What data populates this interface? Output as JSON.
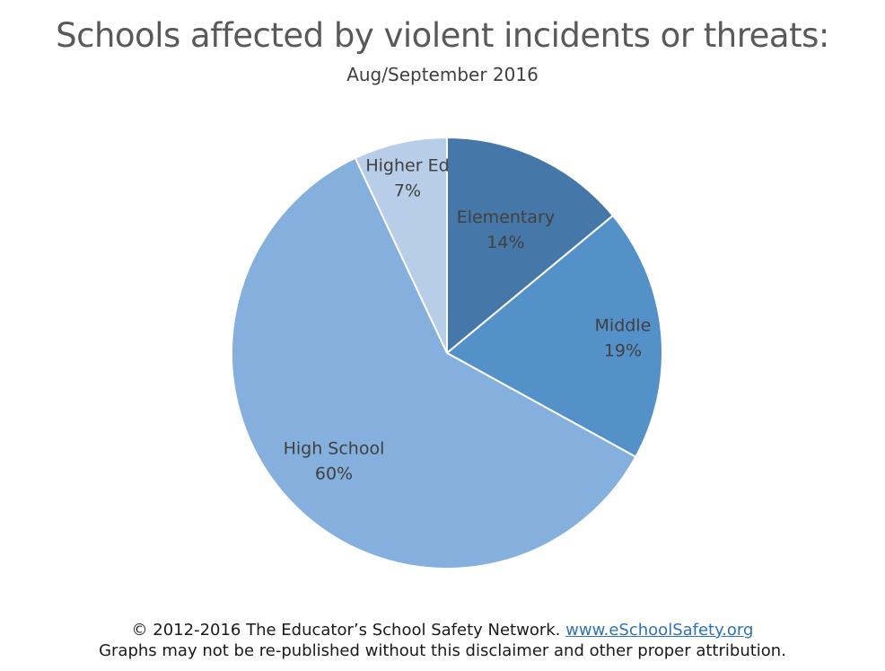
{
  "chart_data": {
    "type": "pie",
    "title": "Schools affected by violent incidents or threats:",
    "subtitle": "Aug/September 2016",
    "categories": [
      "Elementary",
      "Middle",
      "High School",
      "Higher Ed"
    ],
    "values": [
      14,
      19,
      60,
      7
    ],
    "value_labels": [
      "14%",
      "19%",
      "60%",
      "7%"
    ],
    "colors": [
      "#4677a9",
      "#5591c9",
      "#85afdc",
      "#b7cde8"
    ],
    "start_angle_deg": 0,
    "direction": "clockwise",
    "legend": "none"
  },
  "footer": {
    "copyright": "© 2012-2016 The Educator’s School Safety Network.",
    "link_text": "www.eSchoolSafety.org",
    "disclaimer": "Graphs may not be re-published without this disclaimer and other proper attribution."
  }
}
